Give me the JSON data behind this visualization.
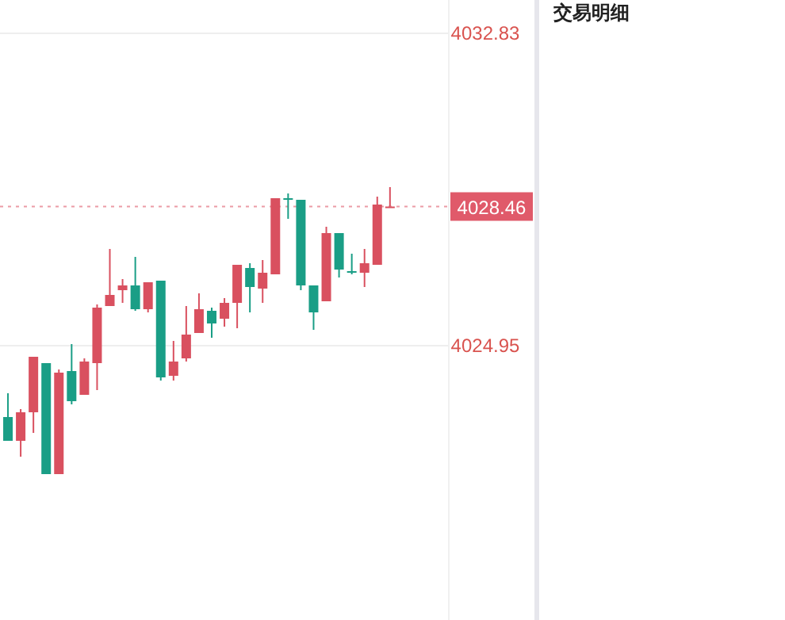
{
  "chart_data": {
    "type": "candlestick",
    "categories": [
      null,
      null,
      null,
      null,
      null,
      null,
      null,
      null,
      null,
      null,
      null,
      null,
      null,
      null,
      null,
      null,
      null,
      null,
      null,
      null,
      null,
      null,
      null,
      null,
      null,
      null,
      null,
      null,
      null,
      null,
      null
    ],
    "ohlc": [
      [
        4023.15,
        4023.75,
        4022.55,
        4022.55
      ],
      [
        4022.55,
        4023.35,
        4022.15,
        4023.27
      ],
      [
        4023.27,
        4024.67,
        4022.75,
        4024.67
      ],
      [
        4024.51,
        4024.51,
        4021.71,
        4021.71
      ],
      [
        4021.71,
        4024.35,
        4021.71,
        4024.27
      ],
      [
        4024.31,
        4024.99,
        4023.47,
        4023.55
      ],
      [
        4023.71,
        4024.63,
        4023.71,
        4024.55
      ],
      [
        4024.51,
        4025.99,
        4023.83,
        4025.91
      ],
      [
        4025.95,
        4027.39,
        4025.95,
        4026.23
      ],
      [
        4026.35,
        4026.63,
        4026.03,
        4026.47
      ],
      [
        4026.47,
        4027.19,
        4025.83,
        4025.87
      ],
      [
        4025.87,
        4026.55,
        4025.79,
        4026.55
      ],
      [
        4026.59,
        4026.59,
        4024.07,
        4024.15
      ],
      [
        4024.19,
        4025.07,
        4024.07,
        4024.55
      ],
      [
        4024.63,
        4025.95,
        4024.55,
        4025.23
      ],
      [
        4025.27,
        4026.27,
        4025.27,
        4025.87
      ],
      [
        4025.83,
        4025.91,
        4025.15,
        4025.51
      ],
      [
        4025.63,
        4026.15,
        4025.43,
        4026.03
      ],
      [
        4026.03,
        4026.99,
        4025.39,
        4026.99
      ],
      [
        4026.91,
        4027.03,
        4025.79,
        4026.43
      ],
      [
        4026.39,
        4027.11,
        4026.03,
        4026.79
      ],
      [
        4026.75,
        4028.67,
        4026.75,
        4028.67
      ],
      [
        4028.67,
        4028.79,
        4028.15,
        4028.63
      ],
      [
        4028.63,
        4028.63,
        4026.35,
        4026.47
      ],
      [
        4026.47,
        4026.47,
        4025.35,
        4025.79
      ],
      [
        4026.07,
        4027.95,
        4026.07,
        4027.79
      ],
      [
        4027.79,
        4027.79,
        4026.67,
        4026.87
      ],
      [
        4026.83,
        4027.27,
        4026.75,
        4026.79
      ],
      [
        4026.79,
        4027.39,
        4026.43,
        4027.03
      ],
      [
        4026.99,
        4028.71,
        4026.99,
        4028.51
      ],
      [
        4028.46,
        4028.95,
        4028.46,
        4028.46
      ]
    ],
    "ylim": [
      4018.03,
      4033.67
    ],
    "yticks": [
      4032.83,
      4024.95
    ],
    "ref_lines": [
      {
        "axis": "y",
        "value": 4028.46,
        "label": "4028.46",
        "color": "#e05a6a",
        "line_style": "dotted"
      }
    ],
    "annotations": [
      "交易明细"
    ],
    "grid": "y"
  }
}
